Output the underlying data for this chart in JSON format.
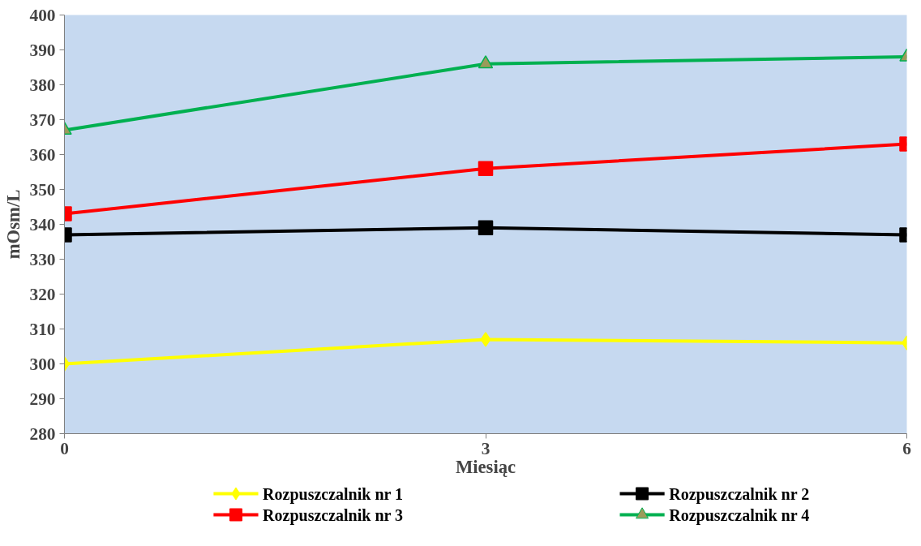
{
  "chart_data": {
    "type": "line",
    "xlabel": "Miesiąc",
    "ylabel": "mOsm/L",
    "x": [
      0,
      3,
      6
    ],
    "xlim": [
      0,
      6
    ],
    "xticks": [
      0,
      3,
      6
    ],
    "ylim": [
      280,
      400
    ],
    "yticks": [
      280,
      290,
      300,
      310,
      320,
      330,
      340,
      350,
      360,
      370,
      380,
      390,
      400
    ],
    "grid": false,
    "legend": "bottom",
    "line_style": "solid",
    "series": [
      {
        "name": "Rozpuszczalnik nr 1",
        "color": "#ffff00",
        "marker": "diamond",
        "values": [
          300,
          307,
          306
        ]
      },
      {
        "name": "Rozpuszczalnik nr 2",
        "color": "#000000",
        "marker": "square",
        "values": [
          337,
          339,
          337
        ]
      },
      {
        "name": "Rozpuszczalnik nr 3",
        "color": "#ff0000",
        "marker": "square",
        "values": [
          343,
          356,
          363
        ]
      },
      {
        "name": "Rozpuszczalnik nr 4",
        "color": "#00b050",
        "marker": "triangle",
        "values": [
          367,
          386,
          388
        ]
      }
    ]
  }
}
